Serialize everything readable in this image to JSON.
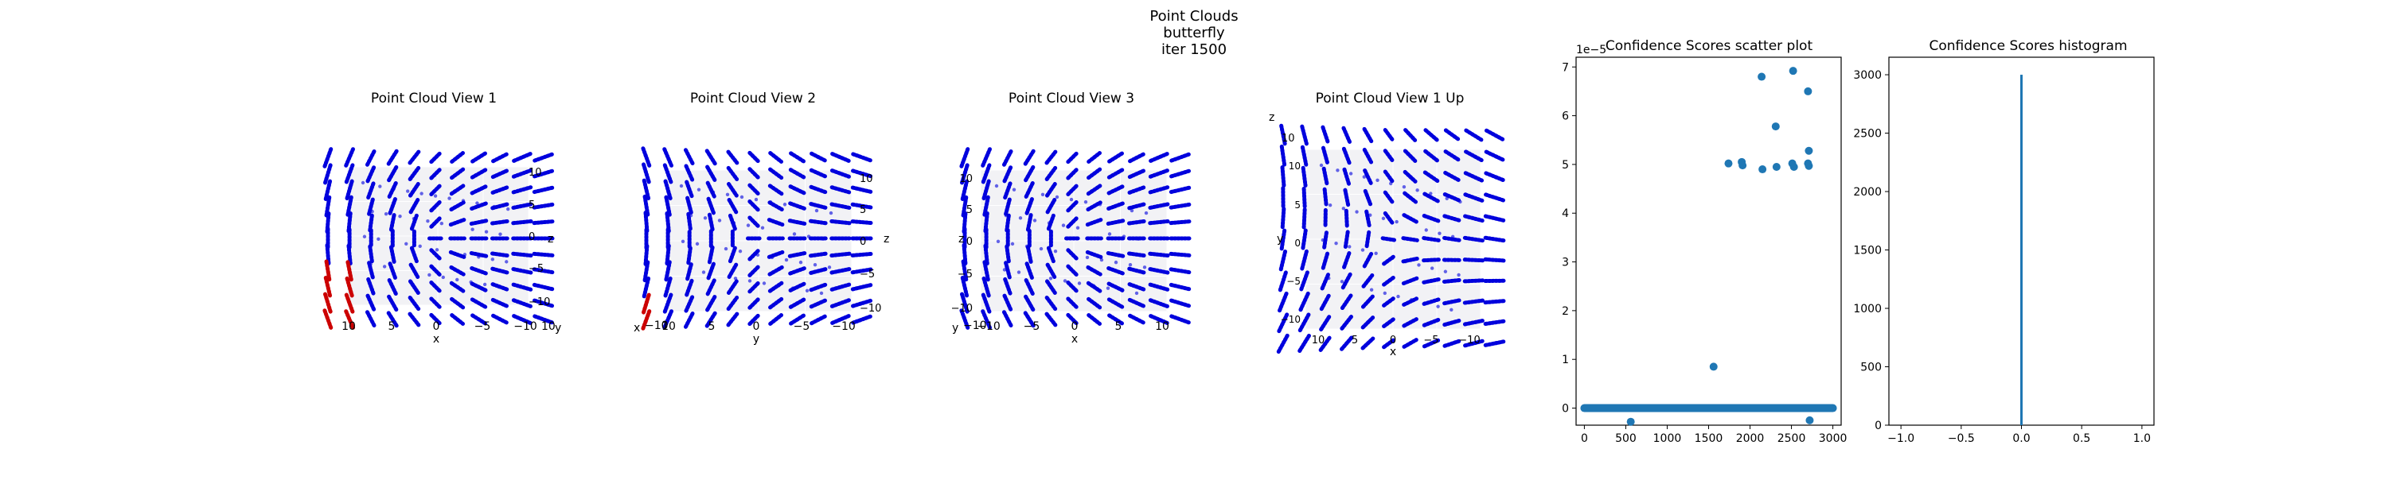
{
  "figure": {
    "suptitle_lines": [
      "Point Clouds",
      "butterfly",
      "iter 1500"
    ]
  },
  "colors": {
    "points": "#0000dd",
    "highlight": "#cc0000",
    "scatter": "#1f77b4",
    "hist": "#1f77b4"
  },
  "views": [
    {
      "title": "Point Cloud View 1",
      "x_ticks": [
        "10",
        "5",
        "0",
        "−5",
        "−10"
      ],
      "x_label": "x",
      "side_ticks": [
        "10",
        "5",
        "0",
        "−5",
        "−10"
      ],
      "side_label": "z",
      "corner_label": "y",
      "corner_tick": "10"
    },
    {
      "title": "Point Cloud View 2",
      "x_ticks": [
        "10",
        "5",
        "0",
        "−5",
        "−10"
      ],
      "x_label": "y",
      "side_ticks": [
        "10",
        "5",
        "0",
        "−5",
        "−10"
      ],
      "side_label": "z",
      "corner_label": "x",
      "corner_tick": "−10"
    },
    {
      "title": "Point Cloud View 3",
      "x_ticks": [
        "−10",
        "−5",
        "0",
        "5",
        "10"
      ],
      "x_label": "x",
      "side_ticks": [
        "10",
        "5",
        "0",
        "−5",
        "−10"
      ],
      "side_label": "z",
      "corner_label": "y",
      "corner_tick": "−10"
    },
    {
      "title": "Point Cloud View 1 Up",
      "x_ticks": [
        "10",
        "5",
        "0",
        "−5",
        "−10"
      ],
      "x_label": "x",
      "side_ticks": [
        "10",
        "5",
        "0",
        "−5",
        "−10"
      ],
      "side_label": "y",
      "corner_label": "z",
      "corner_tick": "10"
    }
  ],
  "chart_data": [
    {
      "type": "scatter",
      "title": "Confidence Scores scatter plot",
      "xlabel": "",
      "ylabel": "",
      "y_offset_text": "1e−5",
      "xlim": [
        -100,
        3100
      ],
      "ylim": [
        -0.35,
        7.2
      ],
      "x_ticks": [
        0,
        500,
        1000,
        1500,
        2000,
        2500,
        3000
      ],
      "y_ticks": [
        0,
        1,
        2,
        3,
        4,
        5,
        6,
        7
      ],
      "baseline": {
        "x_start": 0,
        "x_end": 3000,
        "y": 0
      },
      "points": [
        {
          "x": 560,
          "y": -0.28
        },
        {
          "x": 1560,
          "y": 0.85
        },
        {
          "x": 1740,
          "y": 5.02
        },
        {
          "x": 1900,
          "y": 5.05
        },
        {
          "x": 1910,
          "y": 4.98
        },
        {
          "x": 2140,
          "y": 6.8
        },
        {
          "x": 2150,
          "y": 4.9
        },
        {
          "x": 2310,
          "y": 5.78
        },
        {
          "x": 2320,
          "y": 4.95
        },
        {
          "x": 2520,
          "y": 6.92
        },
        {
          "x": 2510,
          "y": 5.02
        },
        {
          "x": 2530,
          "y": 4.95
        },
        {
          "x": 2700,
          "y": 6.5
        },
        {
          "x": 2710,
          "y": 5.28
        },
        {
          "x": 2700,
          "y": 5.02
        },
        {
          "x": 2710,
          "y": 4.97
        },
        {
          "x": 2720,
          "y": -0.25
        }
      ]
    },
    {
      "type": "bar",
      "title": "Confidence Scores histogram",
      "xlabel": "",
      "ylabel": "",
      "xlim": [
        -1.1,
        1.1
      ],
      "ylim": [
        0,
        3150
      ],
      "x_ticks": [
        -1.0,
        -0.5,
        0.0,
        0.5,
        1.0
      ],
      "x_tick_labels": [
        "−1.0",
        "−0.5",
        "0.0",
        "0.5",
        "1.0"
      ],
      "y_ticks": [
        0,
        500,
        1000,
        1500,
        2000,
        2500,
        3000
      ],
      "bins": [
        {
          "x": 0.0,
          "count": 3000
        }
      ]
    }
  ]
}
